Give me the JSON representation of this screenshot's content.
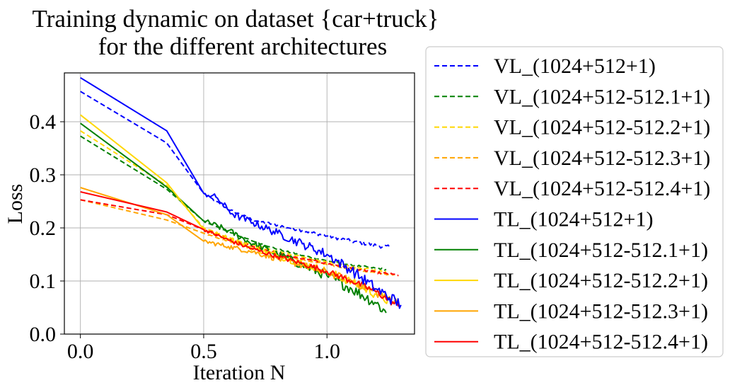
{
  "chart_data": {
    "type": "line",
    "title": "Training dynamic on dataset {car+truck}\nfor the different architectures",
    "xlabel": "Iteration N",
    "ylabel": "Loss",
    "xlim": [
      -0.065,
      1.355
    ],
    "ylim": [
      0.0,
      0.492
    ],
    "xticks": [
      0.0,
      0.5,
      1.0
    ],
    "xtick_labels": [
      "0.0",
      "0.5",
      "1.0"
    ],
    "yticks": [
      0.0,
      0.1,
      0.2,
      0.3,
      0.4
    ],
    "ytick_labels": [
      "0.0",
      "0.1",
      "0.2",
      "0.3",
      "0.4"
    ],
    "grid": true,
    "legend_position": "outside-right",
    "series": [
      {
        "name": "VL_(1024+512+1)",
        "color": "#0000ff",
        "dash": true,
        "x": [
          0.0,
          0.35,
          0.5,
          0.6,
          0.7,
          0.8,
          0.9,
          1.0,
          1.1,
          1.2,
          1.26
        ],
        "y": [
          0.457,
          0.36,
          0.265,
          0.235,
          0.215,
          0.205,
          0.195,
          0.185,
          0.175,
          0.167,
          0.163
        ],
        "noise": 0.004
      },
      {
        "name": "VL_(1024+512-512.1+1)",
        "color": "#008000",
        "dash": true,
        "x": [
          0.0,
          0.35,
          0.5,
          0.6,
          0.7,
          0.8,
          0.9,
          1.0,
          1.1,
          1.2,
          1.24
        ],
        "y": [
          0.373,
          0.273,
          0.213,
          0.193,
          0.175,
          0.16,
          0.148,
          0.138,
          0.13,
          0.124,
          0.122
        ],
        "noise": 0.002
      },
      {
        "name": "VL_(1024+512-512.2+1)",
        "color": "#ffd700",
        "dash": true,
        "x": [
          0.0,
          0.35,
          0.5,
          0.6,
          0.7,
          0.8,
          0.9,
          1.0,
          1.1,
          1.2,
          1.24
        ],
        "y": [
          0.383,
          0.28,
          0.2,
          0.182,
          0.168,
          0.156,
          0.145,
          0.135,
          0.127,
          0.12,
          0.117
        ],
        "noise": 0.002
      },
      {
        "name": "VL_(1024+512-512.3+1)",
        "color": "#ffa500",
        "dash": true,
        "x": [
          0.0,
          0.35,
          0.5,
          0.6,
          0.7,
          0.8,
          0.9,
          1.0,
          1.1,
          1.2,
          1.29
        ],
        "y": [
          0.253,
          0.215,
          0.19,
          0.175,
          0.162,
          0.15,
          0.14,
          0.131,
          0.123,
          0.115,
          0.11
        ],
        "noise": 0.002
      },
      {
        "name": "VL_(1024+512-512.4+1)",
        "color": "#ff0000",
        "dash": true,
        "x": [
          0.0,
          0.35,
          0.5,
          0.6,
          0.7,
          0.8,
          0.9,
          1.0,
          1.1,
          1.2,
          1.29
        ],
        "y": [
          0.253,
          0.225,
          0.197,
          0.18,
          0.165,
          0.152,
          0.142,
          0.133,
          0.124,
          0.116,
          0.111
        ],
        "noise": 0.002
      },
      {
        "name": "TL_(1024+512+1)",
        "color": "#0000ff",
        "dash": false,
        "x": [
          0.0,
          0.35,
          0.5,
          0.55,
          0.62,
          0.7,
          0.8,
          0.9,
          1.0,
          1.1,
          1.2,
          1.3
        ],
        "y": [
          0.483,
          0.383,
          0.265,
          0.258,
          0.225,
          0.21,
          0.19,
          0.17,
          0.15,
          0.12,
          0.085,
          0.055
        ],
        "noise": 0.012
      },
      {
        "name": "TL_(1024+512-512.1+1)",
        "color": "#008000",
        "dash": false,
        "x": [
          0.0,
          0.35,
          0.5,
          0.6,
          0.7,
          0.8,
          0.9,
          1.0,
          1.1,
          1.2,
          1.24
        ],
        "y": [
          0.397,
          0.277,
          0.213,
          0.195,
          0.17,
          0.15,
          0.13,
          0.11,
          0.085,
          0.058,
          0.04
        ],
        "noise": 0.012
      },
      {
        "name": "TL_(1024+512-512.2+1)",
        "color": "#ffd700",
        "dash": false,
        "x": [
          0.0,
          0.35,
          0.5,
          0.6,
          0.7,
          0.8,
          0.9,
          1.0,
          1.1,
          1.2,
          1.26
        ],
        "y": [
          0.413,
          0.285,
          0.197,
          0.18,
          0.162,
          0.148,
          0.133,
          0.118,
          0.098,
          0.075,
          0.06
        ],
        "noise": 0.01
      },
      {
        "name": "TL_(1024+512-512.3+1)",
        "color": "#ffa500",
        "dash": false,
        "x": [
          0.0,
          0.35,
          0.5,
          0.6,
          0.7,
          0.8,
          0.9,
          1.0,
          1.1,
          1.2,
          1.29
        ],
        "y": [
          0.276,
          0.225,
          0.175,
          0.165,
          0.155,
          0.142,
          0.13,
          0.116,
          0.1,
          0.078,
          0.058
        ],
        "noise": 0.009
      },
      {
        "name": "TL_(1024+512-512.4+1)",
        "color": "#ff0000",
        "dash": false,
        "x": [
          0.0,
          0.35,
          0.5,
          0.6,
          0.7,
          0.8,
          0.9,
          1.0,
          1.1,
          1.2,
          1.29
        ],
        "y": [
          0.268,
          0.23,
          0.197,
          0.177,
          0.16,
          0.146,
          0.133,
          0.118,
          0.1,
          0.08,
          0.052
        ],
        "noise": 0.007
      }
    ]
  }
}
